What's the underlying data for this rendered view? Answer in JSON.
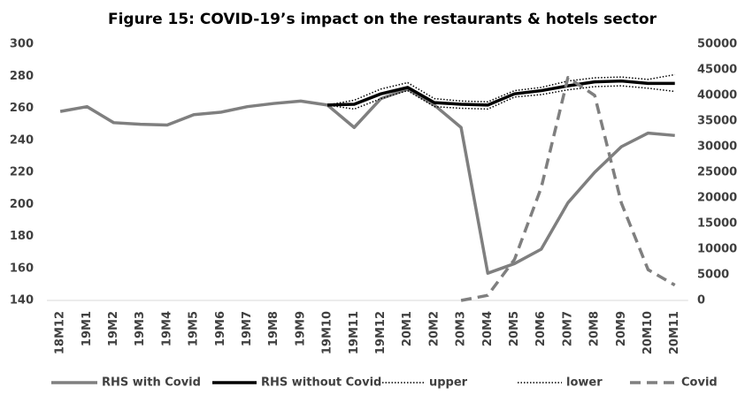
{
  "chart_data": {
    "type": "line",
    "title": "Figure 15: COVID-19’s impact on the restaurants & hotels sector",
    "categories": [
      "18M12",
      "19M1",
      "19M2",
      "19M3",
      "19M4",
      "19M5",
      "19M6",
      "19M7",
      "19M8",
      "19M9",
      "19M10",
      "19M11",
      "19M12",
      "20M1",
      "20M2",
      "20M3",
      "20M4",
      "20M5",
      "20M6",
      "20M7",
      "20M8",
      "20M9",
      "20M10",
      "20M11"
    ],
    "series": [
      {
        "name": "RHS with Covid",
        "color": "#7f7f7f",
        "style": "solid",
        "values": [
          258,
          261,
          251,
          250,
          249.5,
          256,
          257.5,
          261,
          263,
          264.5,
          262,
          248,
          266,
          272,
          262,
          248,
          157,
          163,
          172,
          201,
          220,
          236,
          244.5,
          243
        ]
      },
      {
        "name": "RHS without Covid",
        "color": "#000000",
        "style": "solid",
        "values": [
          null,
          null,
          null,
          null,
          null,
          null,
          null,
          null,
          null,
          null,
          262,
          262.5,
          269,
          273,
          263.5,
          262.5,
          262,
          269,
          271,
          274,
          276.5,
          277,
          275.5,
          275.5
        ]
      },
      {
        "name": "upper",
        "color": "#000000",
        "style": "dotted",
        "values": [
          null,
          null,
          null,
          null,
          null,
          null,
          null,
          null,
          null,
          null,
          262,
          265,
          272,
          276,
          266,
          264.5,
          264,
          271,
          273,
          277,
          279,
          279.5,
          278,
          281
        ]
      },
      {
        "name": "lower",
        "color": "#000000",
        "style": "dotted",
        "values": [
          null,
          null,
          null,
          null,
          null,
          null,
          null,
          null,
          null,
          null,
          262,
          259.5,
          266,
          271,
          261,
          260,
          259.5,
          267,
          268.5,
          271.5,
          273.5,
          274,
          272.5,
          270.5
        ]
      },
      {
        "name": "Covid",
        "color": "#7f7f7f",
        "style": "dashed",
        "axis": "y2",
        "values": [
          null,
          null,
          null,
          null,
          null,
          null,
          null,
          null,
          null,
          null,
          null,
          null,
          null,
          null,
          null,
          0,
          1000,
          8000,
          22000,
          43500,
          40000,
          19000,
          6000,
          3000
        ]
      }
    ],
    "ylim": [
      140,
      300
    ],
    "yticks": [
      140,
      160,
      180,
      200,
      220,
      240,
      260,
      280,
      300
    ],
    "y2lim": [
      0,
      50000
    ],
    "y2ticks": [
      0,
      5000,
      10000,
      15000,
      20000,
      25000,
      30000,
      35000,
      40000,
      45000,
      50000
    ],
    "grid": false,
    "legend": "bottom"
  }
}
